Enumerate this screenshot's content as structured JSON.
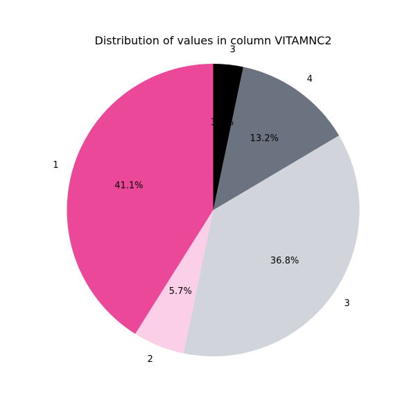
{
  "chart_data": {
    "type": "pie",
    "title": "Distribution of values in column VITAMNC2",
    "start_angle_deg": 90,
    "direction": "counterclockwise",
    "slices": [
      {
        "label": "1",
        "value": 41.1,
        "pct_label": "41.1%",
        "color": "#ec4899"
      },
      {
        "label": "2",
        "value": 5.7,
        "pct_label": "5.7%",
        "color": "#fbcfe8"
      },
      {
        "label": "3",
        "value": 36.8,
        "pct_label": "36.8%",
        "color": "#d1d5db"
      },
      {
        "label": "4",
        "value": 13.2,
        "pct_label": "13.2%",
        "color": "#6b7280"
      },
      {
        "label": "3",
        "value": 3.3,
        "pct_label": "3.3%",
        "color": "#000000"
      }
    ]
  }
}
